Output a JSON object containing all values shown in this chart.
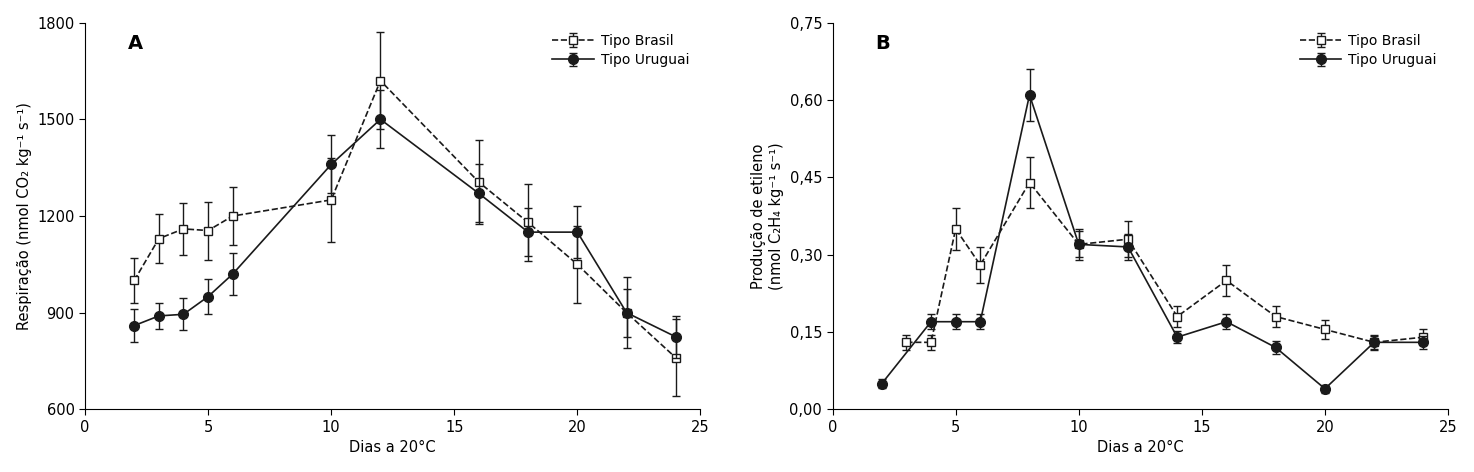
{
  "A": {
    "brasil_x": [
      2,
      3,
      4,
      5,
      6,
      10,
      12,
      16,
      18,
      20,
      22,
      24
    ],
    "brasil_y": [
      1000,
      1130,
      1160,
      1155,
      1200,
      1250,
      1620,
      1305,
      1180,
      1050,
      900,
      760
    ],
    "brasil_yerr": [
      70,
      75,
      80,
      90,
      90,
      130,
      150,
      130,
      120,
      120,
      110,
      120
    ],
    "uruguai_x": [
      2,
      3,
      4,
      5,
      6,
      10,
      12,
      16,
      18,
      20,
      22,
      24
    ],
    "uruguai_y": [
      860,
      890,
      895,
      950,
      1020,
      1360,
      1500,
      1270,
      1150,
      1150,
      900,
      825
    ],
    "uruguai_yerr": [
      50,
      40,
      50,
      55,
      65,
      90,
      90,
      90,
      75,
      80,
      75,
      65
    ],
    "ylabel1": "Respiração (nmol CO",
    "ylabel2": " kg",
    "ylabel3": " s",
    "ylabel": "Respiração (nmol CO₂ kg⁻¹ s⁻¹)",
    "xlabel": "Dias a 20°C",
    "ylim": [
      600,
      1800
    ],
    "yticks": [
      600,
      900,
      1200,
      1500,
      1800
    ],
    "ytick_labels": [
      "600",
      "900",
      "1200",
      "1500",
      "1800"
    ],
    "xlim": [
      0,
      25
    ],
    "xticks": [
      0,
      5,
      10,
      15,
      20,
      25
    ],
    "label": "A"
  },
  "B": {
    "brasil_x": [
      3,
      4,
      5,
      6,
      8,
      10,
      12,
      14,
      16,
      18,
      20,
      22,
      24
    ],
    "brasil_y": [
      0.13,
      0.13,
      0.35,
      0.28,
      0.44,
      0.32,
      0.33,
      0.18,
      0.25,
      0.18,
      0.155,
      0.13,
      0.14
    ],
    "brasil_yerr": [
      0.015,
      0.015,
      0.04,
      0.035,
      0.05,
      0.03,
      0.035,
      0.02,
      0.03,
      0.02,
      0.018,
      0.015,
      0.015
    ],
    "uruguai_x": [
      2,
      4,
      5,
      6,
      8,
      10,
      12,
      14,
      16,
      18,
      20,
      22,
      24
    ],
    "uruguai_y": [
      0.05,
      0.17,
      0.17,
      0.17,
      0.61,
      0.32,
      0.315,
      0.14,
      0.17,
      0.12,
      0.04,
      0.13,
      0.13
    ],
    "uruguai_yerr": [
      0.008,
      0.015,
      0.015,
      0.015,
      0.05,
      0.025,
      0.025,
      0.012,
      0.015,
      0.012,
      0.008,
      0.012,
      0.012
    ],
    "ylabel": "Produção de etileno\n(nmol C₂H₄ kg⁻¹ s⁻¹)",
    "xlabel": "Dias a 20°C",
    "ylim": [
      0.0,
      0.75
    ],
    "yticks": [
      0.0,
      0.15,
      0.3,
      0.45,
      0.6,
      0.75
    ],
    "ytick_labels": [
      "0,00",
      "0,15",
      "0,30",
      "0,45",
      "0,60",
      "0,75"
    ],
    "xlim": [
      0,
      25
    ],
    "xticks": [
      0,
      5,
      10,
      15,
      20,
      25
    ],
    "label": "B"
  },
  "legend_brasil": "Tipo Brasil",
  "legend_uruguai": "Tipo Uruguai",
  "line_color": "#1a1a1a",
  "font_size": 10.5
}
